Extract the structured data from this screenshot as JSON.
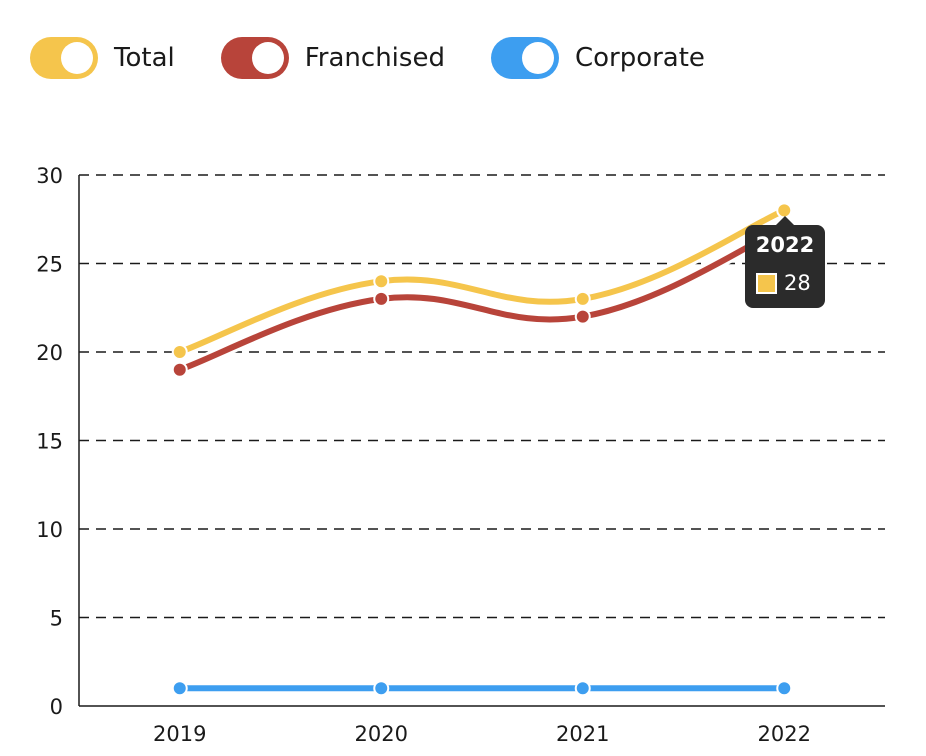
{
  "legend": {
    "items": [
      {
        "label": "Total",
        "color": "#f5c54c"
      },
      {
        "label": "Franchised",
        "color": "#b8443a"
      },
      {
        "label": "Corporate",
        "color": "#3d9ef0"
      }
    ]
  },
  "chart_data": {
    "type": "line",
    "title": "",
    "xlabel": "",
    "ylabel": "",
    "categories": [
      "2019",
      "2020",
      "2021",
      "2022"
    ],
    "ylim": [
      0,
      30
    ],
    "yticks": [
      0,
      5,
      10,
      15,
      20,
      25,
      30
    ],
    "grid": true,
    "legend_position": "top-left",
    "series": [
      {
        "name": "Total",
        "color": "#f5c54c",
        "values": [
          20,
          24,
          23,
          28
        ]
      },
      {
        "name": "Franchised",
        "color": "#b8443a",
        "values": [
          19,
          23,
          22,
          27
        ]
      },
      {
        "name": "Corporate",
        "color": "#3d9ef0",
        "values": [
          1,
          1,
          1,
          1
        ]
      }
    ]
  },
  "tooltip": {
    "title": "2022",
    "value": "28",
    "color": "#f5c54c"
  }
}
